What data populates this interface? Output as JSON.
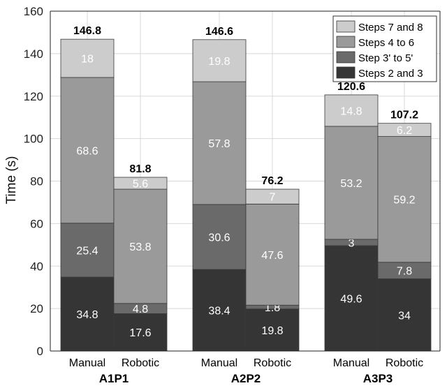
{
  "chart_data": {
    "type": "bar",
    "stacked": true,
    "title": "",
    "ylabel": "Time (s)",
    "xlabel": "",
    "ylim": [
      0,
      160
    ],
    "yticks": [
      0,
      20,
      40,
      60,
      80,
      100,
      120,
      140,
      160
    ],
    "grid": true,
    "legend_position": "top-right",
    "groups": [
      "A1P1",
      "A2P2",
      "A3P3"
    ],
    "categories": [
      "Manual",
      "Robotic",
      "Manual",
      "Robotic",
      "Manual",
      "Robotic"
    ],
    "totals": [
      "146.8",
      "81.8",
      "146.6",
      "76.2",
      "120.6",
      "107.2"
    ],
    "series": [
      {
        "name": "Steps 2 and 3",
        "color": "#353535",
        "values": [
          34.8,
          17.6,
          38.4,
          19.8,
          49.6,
          34
        ],
        "labels": [
          "34.8",
          "17.6",
          "38.4",
          "19.8",
          "49.6",
          "34"
        ]
      },
      {
        "name": "Step 3' to 5'",
        "color": "#6a6a6a",
        "values": [
          25.4,
          4.8,
          30.6,
          1.8,
          3,
          7.8
        ],
        "labels": [
          "25.4",
          "4.8",
          "30.6",
          "1.8",
          "3",
          "7.8"
        ]
      },
      {
        "name": "Steps 4 to 6",
        "color": "#9a9a9a",
        "values": [
          68.6,
          53.8,
          57.8,
          47.6,
          53.2,
          59.2
        ],
        "labels": [
          "68.6",
          "53.8",
          "57.8",
          "47.6",
          "53.2",
          "59.2"
        ]
      },
      {
        "name": "Steps 7 and 8",
        "color": "#cccccc",
        "values": [
          18,
          5.6,
          19.8,
          7,
          14.8,
          6.2
        ],
        "labels": [
          "18",
          "5.6",
          "19.8",
          "7",
          "14.8",
          "6.2"
        ]
      }
    ]
  }
}
